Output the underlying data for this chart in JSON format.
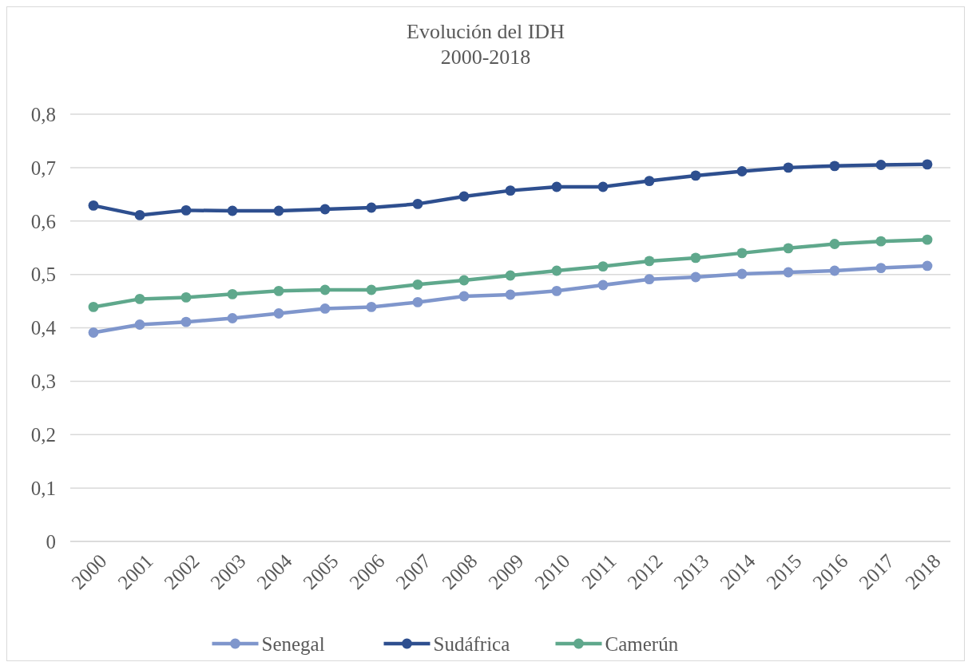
{
  "chart_data": {
    "type": "line",
    "title": "Evolución del IDH",
    "subtitle": "2000-2018",
    "categories": [
      "2000",
      "2001",
      "2002",
      "2003",
      "2004",
      "2005",
      "2006",
      "2007",
      "2008",
      "2009",
      "2010",
      "2011",
      "2012",
      "2013",
      "2014",
      "2015",
      "2016",
      "2017",
      "2018"
    ],
    "series": [
      {
        "name": "Senegal",
        "color": "#7f96cc",
        "values": [
          0.391,
          0.406,
          0.411,
          0.418,
          0.427,
          0.436,
          0.439,
          0.448,
          0.459,
          0.462,
          0.469,
          0.48,
          0.491,
          0.495,
          0.501,
          0.504,
          0.507,
          0.512,
          0.516
        ]
      },
      {
        "name": "Sudáfrica",
        "color": "#2e4f8f",
        "values": [
          0.629,
          0.611,
          0.62,
          0.619,
          0.619,
          0.622,
          0.625,
          0.632,
          0.646,
          0.657,
          0.664,
          0.664,
          0.675,
          0.685,
          0.693,
          0.7,
          0.703,
          0.705,
          0.706
        ]
      },
      {
        "name": "Camerún",
        "color": "#5fa88c",
        "values": [
          0.439,
          0.454,
          0.457,
          0.463,
          0.469,
          0.471,
          0.471,
          0.481,
          0.489,
          0.498,
          0.507,
          0.515,
          0.525,
          0.531,
          0.54,
          0.549,
          0.557,
          0.562,
          0.565
        ]
      }
    ],
    "ylim": [
      0,
      0.8
    ],
    "yticks": [
      0,
      {
        "value": 0.1,
        "label": "0,1"
      },
      {
        "value": 0.2,
        "label": "0,2"
      },
      {
        "value": 0.3,
        "label": "0,3"
      },
      {
        "value": 0.4,
        "label": "0,4"
      },
      {
        "value": 0.5,
        "label": "0,5"
      },
      {
        "value": 0.6,
        "label": "0,6"
      },
      {
        "value": 0.7,
        "label": "0,7"
      },
      {
        "value": 0.8,
        "label": "0,8"
      }
    ],
    "grid": "y",
    "legend": "bottom",
    "marker": "circle",
    "line_style": "solid"
  }
}
